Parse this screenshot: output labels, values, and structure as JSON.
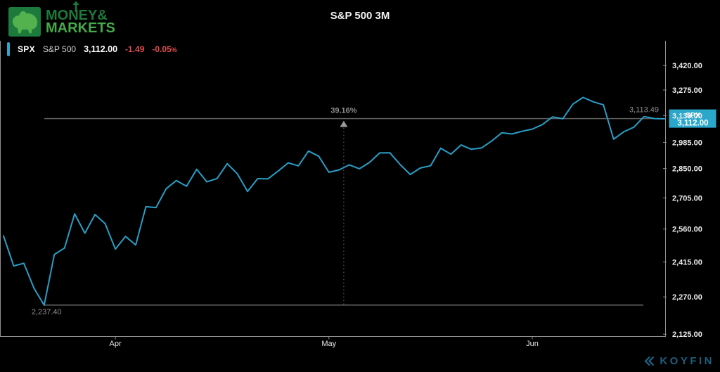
{
  "header": {
    "logo_line1": "MONEY&",
    "logo_line2": "MARKETS",
    "title": "S&P 500 3M"
  },
  "legend": {
    "ticker": "SPX",
    "name": "S&P 500",
    "last": "3,112.00",
    "change": "-1.49",
    "change_pct": "-0.05",
    "pct_sign": "%"
  },
  "price_badge": {
    "ticker": "SPX",
    "value": "3,112.00"
  },
  "footer": {
    "brand": "KOYFIN"
  },
  "colors": {
    "background": "#000000",
    "series_line": "#2A9EC6",
    "badge_accent": "#2BA7CB",
    "negative": "#E04E52",
    "annotation_gray": "#8F8F8F",
    "axis_gray": "#909090",
    "tick_text": "#EDEDED",
    "ref_line_gray": "#5E5E5E",
    "logo_green_dark": "#1B7A3C",
    "logo_green_light": "#46A94A",
    "koyfin_teal": "#1D5E7D"
  },
  "chart_data": {
    "type": "line",
    "title": "S&P 500 3M",
    "y_scale": "log",
    "grid": false,
    "legend_position": "top-left",
    "series": [
      {
        "name": "SPX",
        "color": "#2A9EC6",
        "values": [
          2529.19,
          2398.1,
          2409.39,
          2304.92,
          2237.4,
          2447.33,
          2475.56,
          2630.07,
          2541.47,
          2626.65,
          2584.59,
          2470.5,
          2526.9,
          2488.65,
          2663.68,
          2659.41,
          2749.98,
          2789.82,
          2761.63,
          2846.06,
          2783.36,
          2799.55,
          2874.56,
          2823.16,
          2736.56,
          2799.31,
          2797.8,
          2836.74,
          2878.48,
          2863.39,
          2939.51,
          2912.43,
          2830.71,
          2842.74,
          2868.44,
          2848.42,
          2881.19,
          2929.8,
          2930.32,
          2870.12,
          2820.0,
          2852.5,
          2863.7,
          2953.91,
          2922.94,
          2971.61,
          2948.51,
          2955.45,
          2991.77,
          3036.13,
          3029.73,
          3044.31,
          3055.73,
          3080.82,
          3122.87,
          3112.35,
          3193.93,
          3232.39,
          3207.18,
          3190.14,
          3002.1,
          3041.31,
          3066.59,
          3124.74,
          3113.49,
          3112.0
        ]
      }
    ],
    "x_ticks": [
      {
        "label": "Apr",
        "index": 11
      },
      {
        "label": "May",
        "index": 32
      },
      {
        "label": "Jun",
        "index": 52
      }
    ],
    "y_ticks": [
      {
        "value": 3420.0,
        "label": "3,420.00"
      },
      {
        "value": 3275.0,
        "label": "3,275.00"
      },
      {
        "value": 3130.0,
        "label": "3,130.00"
      },
      {
        "value": 2985.0,
        "label": "2,985.00"
      },
      {
        "value": 2850.0,
        "label": "2,850.00"
      },
      {
        "value": 2705.0,
        "label": "2,705.00"
      },
      {
        "value": 2560.0,
        "label": "2,560.00"
      },
      {
        "value": 2415.0,
        "label": "2,415.00"
      },
      {
        "value": 2270.0,
        "label": "2,270.00"
      },
      {
        "value": 2125.0,
        "label": "2,125.00"
      }
    ],
    "ylim": [
      2125,
      3420
    ],
    "annotations": {
      "prev_close_line": {
        "value": 3113.49,
        "label": "3,113.49"
      },
      "low_line": {
        "value": 2237.4,
        "label": "2,237.40"
      },
      "pct_change_from_low": "39.16%"
    }
  }
}
